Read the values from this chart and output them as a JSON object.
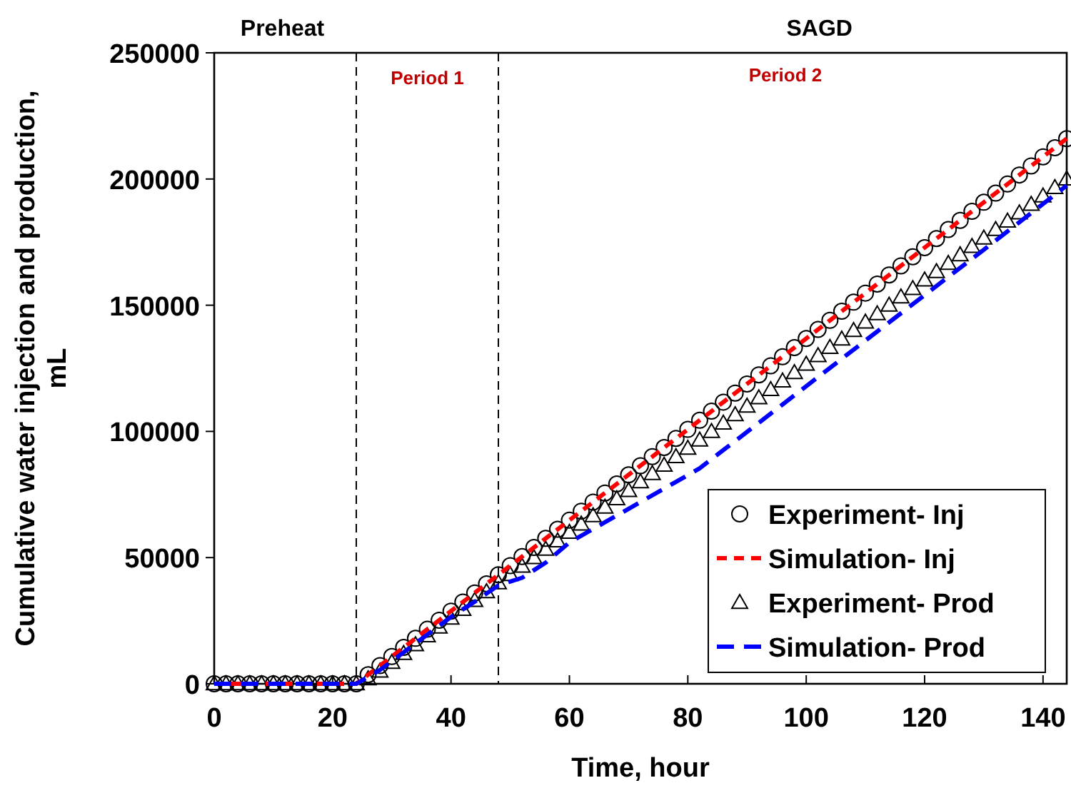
{
  "chart_data": {
    "type": "line",
    "xlabel": "Time, hour",
    "ylabel": "Cumulative water injection and production, mL",
    "xlim": [
      0,
      144
    ],
    "ylim": [
      0,
      250000
    ],
    "xticks": [
      0,
      20,
      40,
      60,
      80,
      100,
      120,
      140
    ],
    "yticks": [
      0,
      50000,
      100000,
      150000,
      200000,
      250000
    ],
    "grid": false,
    "legend": "bottom right",
    "series": [
      {
        "name": "Experiment- Inj",
        "type": "scatter",
        "marker": "circle",
        "color": "#000000",
        "x": [
          0,
          2,
          4,
          6,
          8,
          10,
          12,
          14,
          16,
          18,
          20,
          22,
          24,
          26,
          28,
          30,
          32,
          34,
          36,
          38,
          40,
          42,
          44,
          46,
          48,
          50,
          52,
          54,
          56,
          58,
          60,
          62,
          64,
          66,
          68,
          70,
          72,
          74,
          76,
          78,
          80,
          82,
          84,
          86,
          88,
          90,
          92,
          94,
          96,
          98,
          100,
          102,
          104,
          106,
          108,
          110,
          112,
          114,
          116,
          118,
          120,
          122,
          124,
          126,
          128,
          130,
          132,
          134,
          136,
          138,
          140,
          142,
          144
        ],
        "values": [
          0,
          0,
          0,
          0,
          0,
          0,
          0,
          0,
          0,
          0,
          0,
          0,
          0,
          3600,
          7200,
          10800,
          14400,
          18000,
          21600,
          25200,
          28800,
          32400,
          36000,
          39600,
          43200,
          46800,
          50400,
          54000,
          57600,
          61200,
          64800,
          68400,
          72000,
          75600,
          79200,
          82800,
          86400,
          90000,
          93600,
          97200,
          100800,
          104400,
          108000,
          111600,
          115200,
          118800,
          122400,
          126000,
          129600,
          133200,
          136800,
          140400,
          144000,
          147600,
          151200,
          154800,
          158400,
          162000,
          165600,
          169200,
          172800,
          176400,
          180000,
          183600,
          187200,
          190800,
          194400,
          198000,
          201600,
          205200,
          208800,
          212400,
          216000
        ]
      },
      {
        "name": "Simulation- Inj",
        "type": "line",
        "line_style": "dashed",
        "color": "#ff0000",
        "x": [
          0,
          24,
          48,
          72,
          96,
          120,
          144
        ],
        "values": [
          0,
          0,
          43200,
          86400,
          129600,
          172800,
          216000
        ]
      },
      {
        "name": "Experiment- Prod",
        "type": "scatter",
        "marker": "triangle",
        "color": "#000000",
        "x": [
          0,
          2,
          4,
          6,
          8,
          10,
          12,
          14,
          16,
          18,
          20,
          22,
          24,
          26,
          28,
          30,
          32,
          34,
          36,
          38,
          40,
          42,
          44,
          46,
          48,
          50,
          52,
          54,
          56,
          58,
          60,
          62,
          64,
          66,
          68,
          70,
          72,
          74,
          76,
          78,
          80,
          82,
          84,
          86,
          88,
          90,
          92,
          94,
          96,
          98,
          100,
          102,
          104,
          106,
          108,
          110,
          112,
          114,
          116,
          118,
          120,
          122,
          124,
          126,
          128,
          130,
          132,
          134,
          136,
          138,
          140,
          142,
          144
        ],
        "values": [
          0,
          0,
          0,
          0,
          0,
          0,
          0,
          0,
          0,
          0,
          0,
          0,
          0,
          2000,
          5000,
          8500,
          12000,
          15500,
          19000,
          22500,
          26000,
          29500,
          33000,
          36500,
          40000,
          43300,
          46600,
          50000,
          53300,
          56600,
          60000,
          63300,
          66600,
          70000,
          73300,
          76600,
          80000,
          83300,
          86600,
          90000,
          93300,
          96600,
          100000,
          103300,
          106600,
          110000,
          113300,
          116600,
          120000,
          123300,
          126600,
          130000,
          133300,
          136600,
          140000,
          143300,
          146600,
          150000,
          153300,
          156600,
          160000,
          163300,
          166600,
          170000,
          173300,
          176600,
          180000,
          183300,
          186600,
          190000,
          193300,
          196600,
          200000
        ]
      },
      {
        "name": "Simulation- Prod",
        "type": "line",
        "line_style": "dashed",
        "color": "#0000ff",
        "x": [
          0,
          24,
          28,
          32,
          36,
          40,
          44,
          48,
          52,
          56,
          60,
          66,
          72,
          78,
          82,
          90,
          100,
          110,
          120,
          130,
          144
        ],
        "values": [
          0,
          0,
          5500,
          12500,
          19500,
          26500,
          32500,
          39000,
          42000,
          48000,
          56000,
          64000,
          72000,
          80000,
          85400,
          99800,
          117900,
          136000,
          154000,
          172000,
          197400
        ]
      }
    ],
    "ref_lines": [
      {
        "axis": "x",
        "value": 24,
        "line_style": "dashed",
        "color": "#000000"
      },
      {
        "axis": "x",
        "value": 48,
        "line_style": "dashed",
        "color": "#000000"
      }
    ],
    "annotations": [
      "Preheat",
      "SAGD",
      "Period 1",
      "Period 2"
    ]
  }
}
